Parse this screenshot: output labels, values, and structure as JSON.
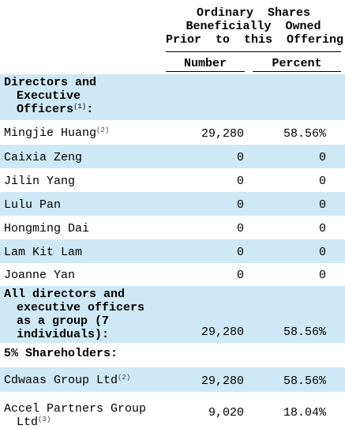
{
  "header": {
    "lines": [
      "Ordinary  Shares",
      "Beneficially  Owned",
      "Prior  to  this  Offering"
    ],
    "columns": [
      "Number",
      "Percent"
    ]
  },
  "rows": [
    {
      "name": "Directors and Executive Officers",
      "note": "(1)",
      "tail": ":",
      "bold": true
    },
    {
      "name": "Mingjie Huang",
      "note": "(2)",
      "number": "29,280",
      "percent": "58.56%"
    },
    {
      "name": "Caixia Zeng",
      "number": "0",
      "percent": "0"
    },
    {
      "name": "Jilin Yang",
      "number": "0",
      "percent": "0"
    },
    {
      "name": "Lulu Pan",
      "number": "0",
      "percent": "0"
    },
    {
      "name": "Hongming Dai",
      "number": "0",
      "percent": "0"
    },
    {
      "name": "Lam Kit Lam",
      "number": "0",
      "percent": "0"
    },
    {
      "name": "Joanne Yan",
      "number": "0",
      "percent": "0"
    },
    {
      "name": "All directors and executive officers as a group (7 individuals):",
      "bold": true,
      "number": "29,280",
      "percent": "58.56%"
    },
    {
      "name": "5% Shareholders:",
      "bold": true
    },
    {
      "name": "Cdwaas Group Ltd",
      "note": "(2)",
      "number": "29,280",
      "percent": "58.56%"
    },
    {
      "name": "Accel Partners Group Ltd",
      "note": "(3)",
      "number": "9,020",
      "percent": "18.04%"
    }
  ]
}
